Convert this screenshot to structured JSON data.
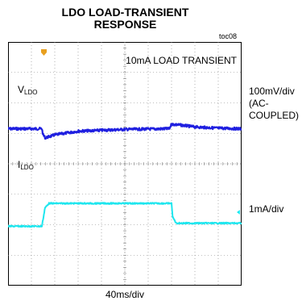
{
  "title": {
    "line1": "LDO LOAD-TRANSIENT",
    "line2": "RESPONSE",
    "toc": "toc08"
  },
  "scope": {
    "annotation": "10mA LOAD TRANSIENT",
    "x_scale": "40ms/div"
  },
  "channels": {
    "v": {
      "label_main": "V",
      "label_sub": "LDO",
      "scale_line1": "100mV/div",
      "scale_line2": "(AC-",
      "scale_line3": "COUPLED)"
    },
    "i": {
      "label_main": "I",
      "label_sub": "LDO",
      "scale": "1mA/div"
    }
  },
  "colors": {
    "v_trace": "#1f1fe0",
    "i_trace": "#1ee6ee",
    "trigger_marker": "#e8a020",
    "grid": "#7f7f7f"
  },
  "chart_data": {
    "type": "line",
    "xlabel": "40ms/div",
    "xlim": [
      0,
      10
    ],
    "x_unit": "div",
    "ylim": [
      -4,
      4
    ],
    "y_unit": "div",
    "grid": true,
    "series": [
      {
        "name": "VLDO",
        "values": [
          [
            0,
            1.15
          ],
          [
            1.45,
            1.15
          ],
          [
            1.5,
            0.95
          ],
          [
            1.6,
            0.85
          ],
          [
            2.0,
            0.95
          ],
          [
            3.0,
            1.07
          ],
          [
            5.0,
            1.13
          ],
          [
            6.9,
            1.15
          ],
          [
            7.0,
            1.3
          ],
          [
            7.4,
            1.27
          ],
          [
            8.0,
            1.21
          ],
          [
            9.0,
            1.17
          ],
          [
            10,
            1.15
          ]
        ]
      },
      {
        "name": "ILDO",
        "values": [
          [
            0,
            -2.05
          ],
          [
            1.45,
            -2.05
          ],
          [
            1.58,
            -1.45
          ],
          [
            1.75,
            -1.3
          ],
          [
            7.0,
            -1.3
          ],
          [
            7.05,
            -1.75
          ],
          [
            7.2,
            -1.95
          ],
          [
            10,
            -1.95
          ]
        ]
      }
    ]
  }
}
